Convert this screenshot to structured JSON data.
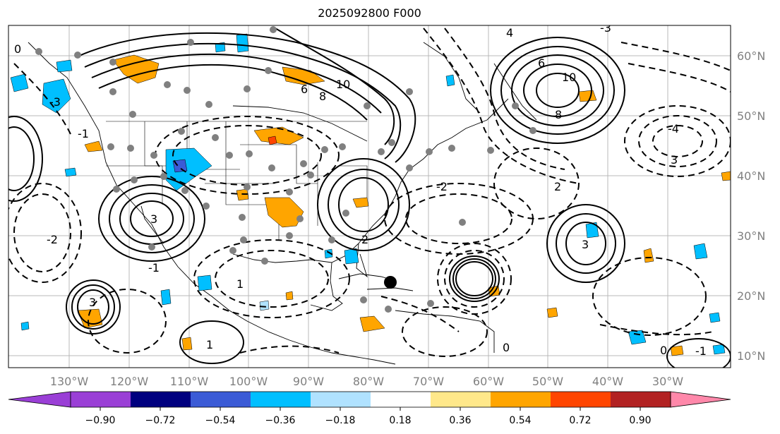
{
  "title": "2025092800 F000",
  "longitude_labels": [
    "130°W",
    "120°W",
    "110°W",
    "100°W",
    "90°W",
    "80°W",
    "70°W",
    "60°W",
    "50°W",
    "40°W",
    "30°W"
  ],
  "latitude_labels": [
    "60°N",
    "50°N",
    "40°N",
    "30°N",
    "20°N",
    "10°N"
  ],
  "contour_labels": {
    "high_north_atlantic": [
      "6",
      "10",
      "8"
    ],
    "high_central_atlantic": [
      "3"
    ],
    "high_ne_pacific": [
      "3"
    ],
    "high_southwest_us": [
      "3"
    ],
    "misc": [
      "-3",
      "-1",
      "1",
      "0",
      "2",
      "-2",
      "4",
      "-4",
      "6",
      "8",
      "10",
      "-1",
      "1",
      "0",
      "-2",
      "2",
      "3",
      "-3",
      "0",
      "-1"
    ]
  },
  "colorbar": {
    "ticks": [
      "−0.90",
      "−0.72",
      "−0.54",
      "−0.36",
      "−0.18",
      "0.18",
      "0.36",
      "0.54",
      "0.72",
      "0.90"
    ],
    "colors": [
      "#9a3fd6",
      "#00007f",
      "#3b5bd6",
      "#00bfff",
      "#b0e2ff",
      "#ffffff",
      "#ffe88a",
      "#ffa500",
      "#ff4500",
      "#b22222",
      "#ff88aa"
    ]
  }
}
